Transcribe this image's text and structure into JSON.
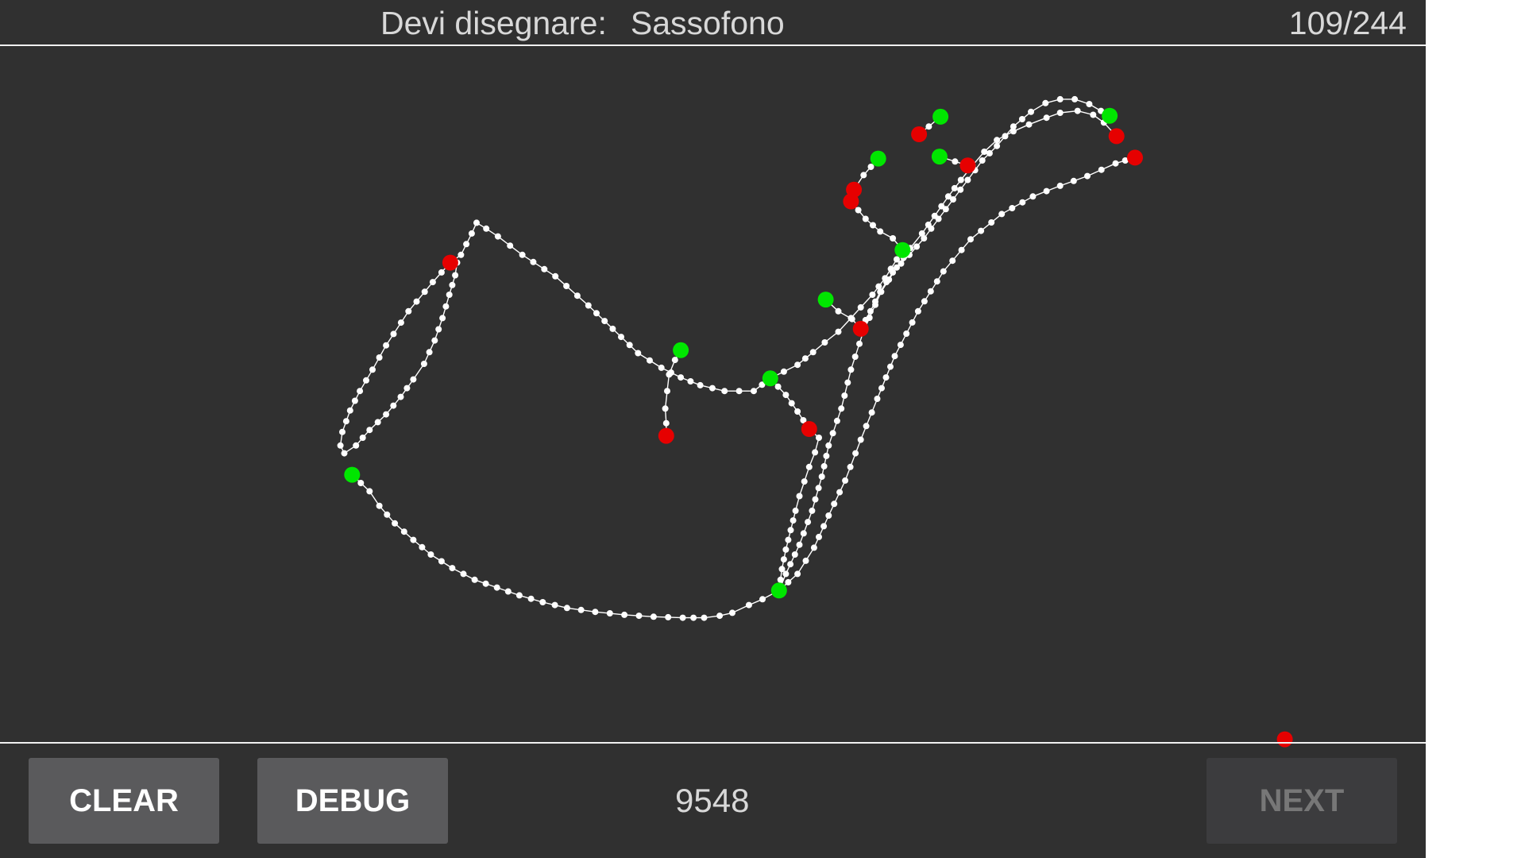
{
  "header": {
    "prompt_label": "Devi disegnare:",
    "target_word": "Sassofono",
    "progress": "109/244"
  },
  "footer": {
    "clear_label": "CLEAR",
    "debug_label": "DEBUG",
    "score": "9548",
    "next_label": "NEXT"
  },
  "colors": {
    "background": "#303030",
    "stroke": "#ffffff",
    "stroke_start": "#00e600",
    "stroke_end": "#e60000"
  },
  "icons": {
    "stroke_start_marker": "green-dot-icon",
    "stroke_end_marker": "red-dot-icon"
  }
}
